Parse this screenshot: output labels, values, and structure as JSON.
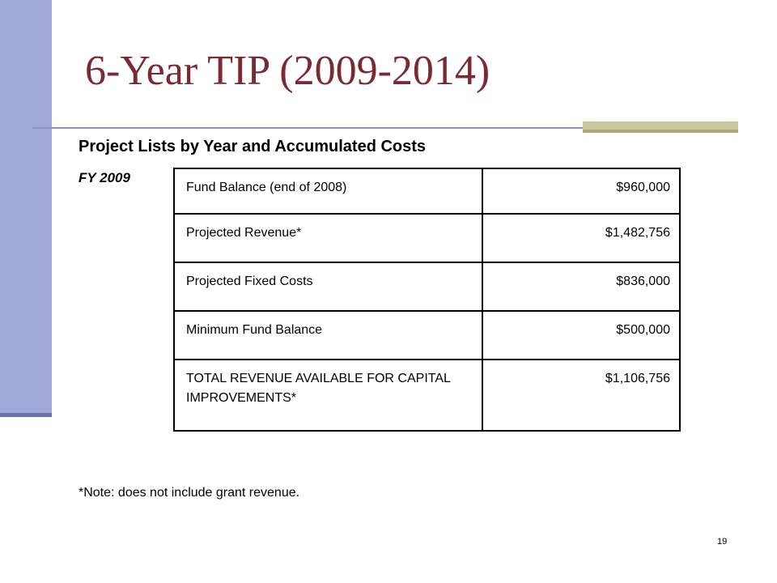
{
  "title": "6-Year TIP (2009-2014)",
  "subtitle": "Project Lists by Year and Accumulated Costs",
  "fiscal_year": "FY 2009",
  "table": {
    "rows": [
      {
        "label": "Fund Balance (end of 2008)",
        "value": "$960,000"
      },
      {
        "label": "Projected Revenue*",
        "value": "$1,482,756"
      },
      {
        "label": "Projected Fixed Costs",
        "value": "$836,000"
      },
      {
        "label": "Minimum Fund Balance",
        "value": "$500,000"
      },
      {
        "label": "TOTAL REVENUE AVAILABLE FOR CAPITAL IMPROVEMENTS*",
        "value": "$1,106,756"
      }
    ]
  },
  "note": "*Note: does not include grant revenue.",
  "page_number": "19",
  "colors": {
    "title": "#7b2a34",
    "left_bar": "#9fa8d6",
    "rule": "#8d93c6",
    "accent_bar": "#c8c8a0"
  }
}
